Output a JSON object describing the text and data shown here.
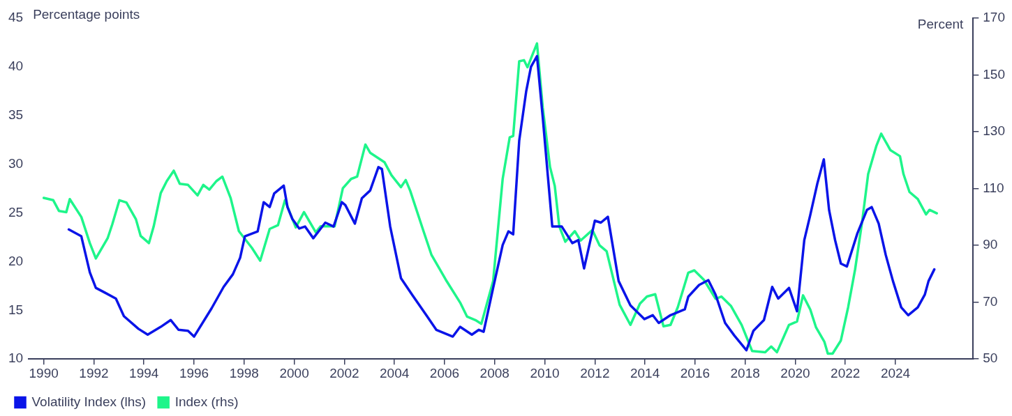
{
  "chart_data": {
    "type": "line",
    "ylabel": "Percentage points",
    "y2label": "Percent",
    "xlim": [
      1989.4,
      2027.1
    ],
    "xticks": [
      1990,
      1992,
      1994,
      1996,
      1998,
      2000,
      2002,
      2004,
      2006,
      2008,
      2010,
      2012,
      2014,
      2016,
      2018,
      2020,
      2022,
      2024
    ],
    "ylim": [
      10,
      45
    ],
    "yticks": [
      10,
      15,
      20,
      25,
      30,
      35,
      40,
      45
    ],
    "y2lim": [
      50,
      170
    ],
    "y2ticks": [
      50,
      70,
      90,
      110,
      130,
      150,
      170
    ],
    "grid": false,
    "legend": "bottom left",
    "marker": "none",
    "line_style": "solid",
    "series": [
      {
        "name": "Volatility Index (lhs)",
        "color": "#0a14e8",
        "axis": "y",
        "x": [
          1991.0,
          1991.5,
          1991.84,
          1992.08,
          1992.45,
          1992.88,
          1993.2,
          1993.78,
          1994.15,
          1994.67,
          1995.07,
          1995.38,
          1995.76,
          1996.0,
          1996.7,
          1997.18,
          1997.55,
          1997.84,
          1998.03,
          1998.54,
          1998.78,
          1999.02,
          1999.2,
          1999.58,
          1999.73,
          1999.92,
          2000.2,
          2000.43,
          2000.76,
          2001.24,
          2001.57,
          2001.9,
          2002.04,
          2002.42,
          2002.7,
          2003.03,
          2003.36,
          2003.5,
          2003.83,
          2004.26,
          2004.73,
          2005.3,
          2005.67,
          2006.33,
          2006.62,
          2007.09,
          2007.37,
          2007.56,
          2007.94,
          2008.32,
          2008.55,
          2008.74,
          2008.98,
          2009.26,
          2009.45,
          2009.69,
          2009.92,
          2010.3,
          2010.68,
          2011.1,
          2011.34,
          2011.57,
          2012.0,
          2012.24,
          2012.52,
          2012.95,
          2013.42,
          2013.98,
          2014.31,
          2014.55,
          2015.02,
          2015.59,
          2015.73,
          2016.16,
          2016.53,
          2016.82,
          2017.2,
          2017.57,
          2018.05,
          2018.33,
          2018.75,
          2019.08,
          2019.32,
          2019.75,
          2020.07,
          2020.36,
          2020.6,
          2020.88,
          2021.14,
          2021.35,
          2021.59,
          2021.82,
          2022.06,
          2022.48,
          2022.86,
          2023.05,
          2023.33,
          2023.61,
          2023.9,
          2024.23,
          2024.51,
          2024.89,
          2025.17,
          2025.32,
          2025.55
        ],
        "values": [
          23.3,
          22.6,
          18.9,
          17.3,
          16.8,
          16.2,
          14.4,
          13.1,
          12.5,
          13.3,
          14.0,
          13.0,
          12.9,
          12.3,
          15.2,
          17.4,
          18.7,
          20.4,
          22.6,
          23.1,
          26.1,
          25.6,
          27.0,
          27.8,
          25.6,
          24.4,
          23.4,
          23.6,
          22.4,
          24.0,
          23.6,
          26.1,
          25.8,
          23.9,
          26.5,
          27.3,
          29.7,
          29.5,
          23.6,
          18.3,
          16.5,
          14.4,
          13.0,
          12.3,
          13.3,
          12.5,
          13.0,
          12.8,
          17.3,
          21.7,
          23.1,
          22.8,
          32.4,
          37.5,
          40.0,
          41.1,
          34.8,
          23.6,
          23.6,
          21.9,
          22.2,
          19.3,
          24.2,
          24.0,
          24.6,
          18.0,
          15.5,
          14.1,
          14.5,
          13.7,
          14.5,
          15.1,
          16.4,
          17.6,
          18.1,
          16.6,
          13.7,
          12.4,
          10.9,
          12.9,
          14.0,
          17.4,
          16.2,
          17.3,
          14.9,
          22.2,
          24.8,
          28.0,
          30.5,
          25.3,
          22.2,
          19.8,
          19.5,
          22.9,
          25.3,
          25.6,
          23.9,
          20.7,
          18.0,
          15.3,
          14.5,
          15.3,
          16.6,
          18.0,
          19.2
        ]
      },
      {
        "name": "Index (rhs)",
        "color": "#1ef58a",
        "axis": "y2",
        "x": [
          1990.0,
          1990.38,
          1990.61,
          1990.9,
          1991.04,
          1991.5,
          1991.84,
          1992.08,
          1992.55,
          1992.74,
          1993.02,
          1993.3,
          1993.68,
          1993.87,
          1994.2,
          1994.39,
          1994.67,
          1994.91,
          1995.19,
          1995.43,
          1995.76,
          1996.14,
          1996.37,
          1996.61,
          1996.89,
          1997.13,
          1997.46,
          1997.79,
          1998.31,
          1998.64,
          1999.02,
          1999.35,
          1999.63,
          2000.06,
          2000.39,
          2000.86,
          2001.05,
          2001.61,
          2001.94,
          2002.27,
          2002.51,
          2002.84,
          2003.03,
          2003.6,
          2003.88,
          2004.26,
          2004.45,
          2004.63,
          2005.16,
          2005.48,
          2006.05,
          2006.62,
          2006.9,
          2007.23,
          2007.47,
          2007.94,
          2008.32,
          2008.6,
          2008.74,
          2008.98,
          2009.17,
          2009.31,
          2009.69,
          2009.92,
          2010.21,
          2010.4,
          2010.58,
          2010.82,
          2011.2,
          2011.43,
          2011.9,
          2012.19,
          2012.47,
          2012.99,
          2013.42,
          2013.8,
          2014.08,
          2014.41,
          2014.74,
          2015.02,
          2015.31,
          2015.73,
          2015.97,
          2016.35,
          2016.82,
          2017.05,
          2017.43,
          2017.86,
          2018.28,
          2018.8,
          2019.04,
          2019.27,
          2019.75,
          2020.07,
          2020.31,
          2020.6,
          2020.83,
          2021.16,
          2021.3,
          2021.49,
          2021.82,
          2022.11,
          2022.39,
          2022.67,
          2022.91,
          2023.24,
          2023.43,
          2023.8,
          2024.18,
          2024.32,
          2024.56,
          2024.89,
          2025.22,
          2025.36,
          2025.65
        ],
        "values": [
          106.7,
          105.9,
          102.1,
          101.7,
          106.3,
          100.0,
          90.8,
          85.4,
          92.5,
          97.5,
          105.9,
          105.1,
          99.2,
          93.3,
          90.8,
          96.7,
          108.4,
          112.6,
          116.3,
          111.7,
          111.3,
          107.6,
          111.3,
          109.6,
          112.6,
          114.2,
          106.7,
          95.0,
          89.1,
          84.6,
          95.8,
          97.1,
          105.9,
          96.3,
          101.7,
          94.6,
          96.7,
          96.7,
          110.1,
          113.4,
          114.2,
          125.5,
          122.6,
          119.3,
          114.7,
          110.5,
          113.0,
          109.2,
          95.0,
          86.6,
          77.9,
          69.9,
          64.9,
          63.7,
          62.4,
          77.5,
          113.4,
          128.0,
          128.5,
          154.8,
          155.2,
          152.7,
          161.1,
          138.5,
          117.6,
          110.9,
          96.7,
          91.3,
          95.0,
          91.7,
          95.4,
          90.0,
          87.9,
          69.1,
          62.0,
          69.5,
          72.0,
          72.8,
          61.5,
          62.0,
          68.2,
          80.4,
          81.2,
          77.9,
          71.2,
          72.0,
          68.7,
          62.0,
          52.8,
          52.4,
          54.4,
          52.4,
          62.0,
          63.2,
          72.4,
          67.4,
          61.1,
          56.1,
          51.9,
          51.9,
          56.5,
          68.2,
          81.6,
          98.4,
          115.1,
          125.1,
          129.3,
          123.5,
          121.4,
          115.1,
          108.8,
          106.3,
          100.9,
          102.5,
          101.3
        ]
      }
    ]
  }
}
